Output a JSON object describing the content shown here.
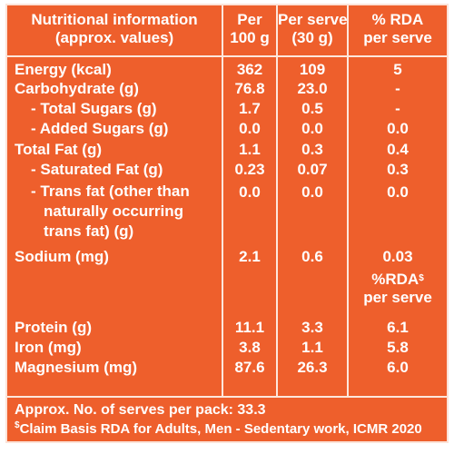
{
  "panel_color": "#ee5f2c",
  "header": {
    "title_line1": "Nutritional information",
    "title_line2": "(approx. values)",
    "col1_line1": "Per",
    "col1_line2": "100 g",
    "col2_line1": "Per serve",
    "col2_line2": "(30 g)",
    "col3_line1": "% RDA",
    "col3_line2": "per serve"
  },
  "rows": [
    {
      "label": "Energy (kcal)",
      "per100g": "362",
      "perServe": "109",
      "rda": "5"
    },
    {
      "label": "Carbohydrate (g)",
      "per100g": "76.8",
      "perServe": "23.0",
      "rda": "-"
    },
    {
      "label": "- Total Sugars (g)",
      "per100g": "1.7",
      "perServe": "0.5",
      "rda": "-"
    },
    {
      "label": "- Added Sugars (g)",
      "per100g": "0.0",
      "perServe": "0.0",
      "rda": "0.0"
    },
    {
      "label": "Total Fat (g)",
      "per100g": "1.1",
      "perServe": "0.3",
      "rda": "0.4"
    },
    {
      "label": "- Saturated Fat (g)",
      "per100g": "0.23",
      "perServe": "0.07",
      "rda": "0.3"
    },
    {
      "label_line1": "- Trans fat (other than",
      "label_line2": "naturally occurring",
      "label_line3": "trans fat) (g)",
      "per100g": "0.0",
      "perServe": "0.0",
      "rda": "0.0"
    },
    {
      "label": "Sodium (mg)",
      "per100g": "2.1",
      "perServe": "0.6",
      "rda": "0.03"
    },
    {
      "label": "Protein (g)",
      "per100g": "11.1",
      "perServe": "3.3",
      "rda": "6.1"
    },
    {
      "label": "Iron (mg)",
      "per100g": "3.8",
      "perServe": "1.1",
      "rda": "5.8"
    },
    {
      "label": "Magnesium (mg)",
      "per100g": "87.6",
      "perServe": "26.3",
      "rda": "6.0"
    }
  ],
  "subheader": {
    "rda_line1": "%RDA",
    "rda_sup": "$",
    "rda_line2": "per serve"
  },
  "footer": {
    "serves": "Approx. No. of serves per pack: 33.3",
    "claim_sup": "$",
    "claim": "Claim Basis RDA for Adults, Men - Sedentary work, ICMR 2020"
  }
}
